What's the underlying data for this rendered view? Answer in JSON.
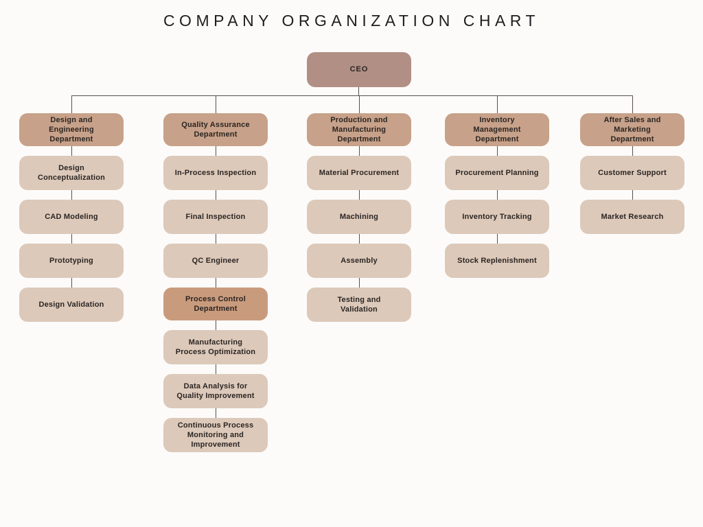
{
  "title": "COMPANY ORGANIZATION CHART",
  "ceo": {
    "label": "CEO"
  },
  "columns": [
    {
      "nodes": [
        {
          "label": "Design and\nEngineering\nDepartment",
          "type": "department"
        },
        {
          "label": "Design\nConceptualization",
          "type": "item"
        },
        {
          "label": "CAD Modeling",
          "type": "item"
        },
        {
          "label": "Prototyping",
          "type": "item"
        },
        {
          "label": "Design Validation",
          "type": "item"
        }
      ]
    },
    {
      "nodes": [
        {
          "label": "Quality Assurance\nDepartment",
          "type": "department"
        },
        {
          "label": "In-Process Inspection",
          "type": "item"
        },
        {
          "label": "Final Inspection",
          "type": "item"
        },
        {
          "label": "QC Engineer",
          "type": "item"
        },
        {
          "label": "Process Control\nDepartment",
          "type": "subdepartment"
        },
        {
          "label": "Manufacturing\nProcess Optimization",
          "type": "item"
        },
        {
          "label": "Data Analysis for\nQuality Improvement",
          "type": "item"
        },
        {
          "label": "Continuous Process\nMonitoring and\nImprovement",
          "type": "item"
        }
      ]
    },
    {
      "nodes": [
        {
          "label": "Production and\nManufacturing\nDepartment",
          "type": "department"
        },
        {
          "label": "Material Procurement",
          "type": "item"
        },
        {
          "label": "Machining",
          "type": "item"
        },
        {
          "label": "Assembly",
          "type": "item"
        },
        {
          "label": "Testing and\nValidation",
          "type": "item"
        }
      ]
    },
    {
      "nodes": [
        {
          "label": "Inventory\nManagement\nDepartment",
          "type": "department"
        },
        {
          "label": "Procurement Planning",
          "type": "item"
        },
        {
          "label": "Inventory Tracking",
          "type": "item"
        },
        {
          "label": "Stock Replenishment",
          "type": "item"
        }
      ]
    },
    {
      "nodes": [
        {
          "label": "After Sales and\nMarketing\nDepartment",
          "type": "department"
        },
        {
          "label": "Customer Support",
          "type": "item"
        },
        {
          "label": "Market Research",
          "type": "item"
        }
      ]
    }
  ],
  "colors": {
    "background": "#fcfbf9",
    "ceo_fill": "#b18f85",
    "department_fill": "#c7a189",
    "subdepartment_fill": "#c99b7d",
    "item_fill": "#dcc9ba",
    "connector_line": "#55504c",
    "node_text": "#2b2522",
    "title_text": "#211d1e"
  }
}
